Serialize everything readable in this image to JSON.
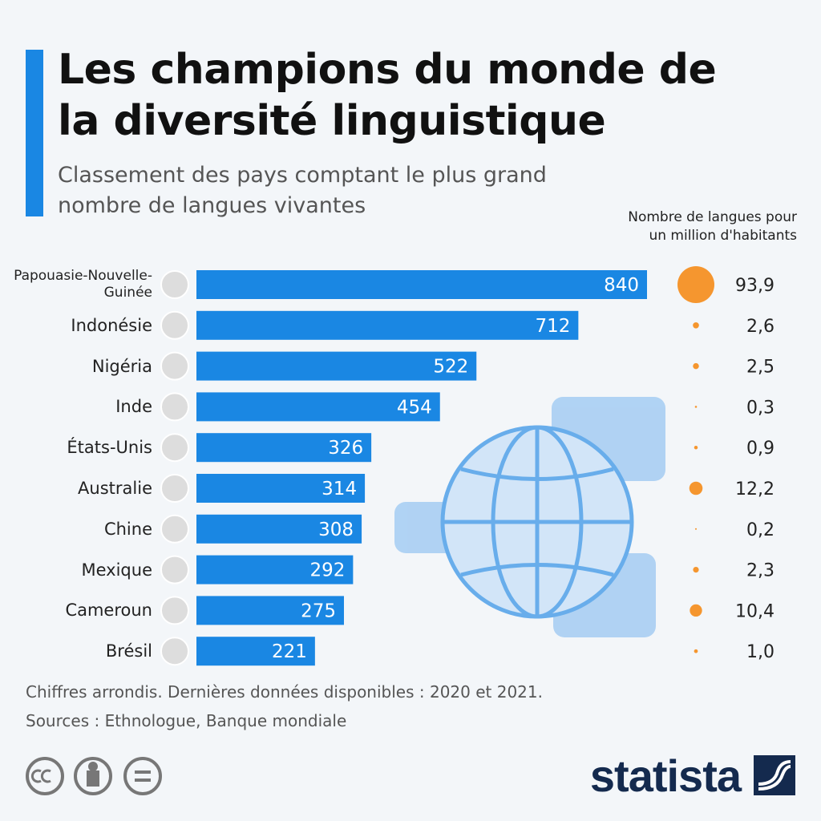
{
  "chart_data": {
    "type": "hbar",
    "title": "Les champions du monde de la diversité linguistique",
    "subtitle": "Classement des pays comptant le plus grand nombre de langues vivantes",
    "categories": [
      "Papouasie-Nouvelle-Guinée",
      "Indonésie",
      "Nigéria",
      "Inde",
      "États-Unis",
      "Australie",
      "Chine",
      "Mexique",
      "Cameroun",
      "Brésil"
    ],
    "values": [
      840,
      712,
      522,
      454,
      326,
      314,
      308,
      292,
      275,
      221
    ],
    "color": "#1a87e3",
    "bubble": {
      "label": "Nombre de langues pour un million d'habitants",
      "values": [
        93.9,
        2.6,
        2.5,
        0.3,
        0.9,
        12.2,
        0.2,
        2.3,
        10.4,
        1.0
      ],
      "value_labels": [
        "93,9",
        "2,6",
        "2,5",
        "0,3",
        "0,9",
        "12,2",
        "0,2",
        "2,3",
        "10,4",
        "1,0"
      ],
      "color": "#f5962f"
    },
    "note": "Chiffres arrondis. Dernières données disponibles : 2020 et 2021.",
    "source": "Sources : Ethnologue, Banque mondiale",
    "brand": "statista"
  }
}
